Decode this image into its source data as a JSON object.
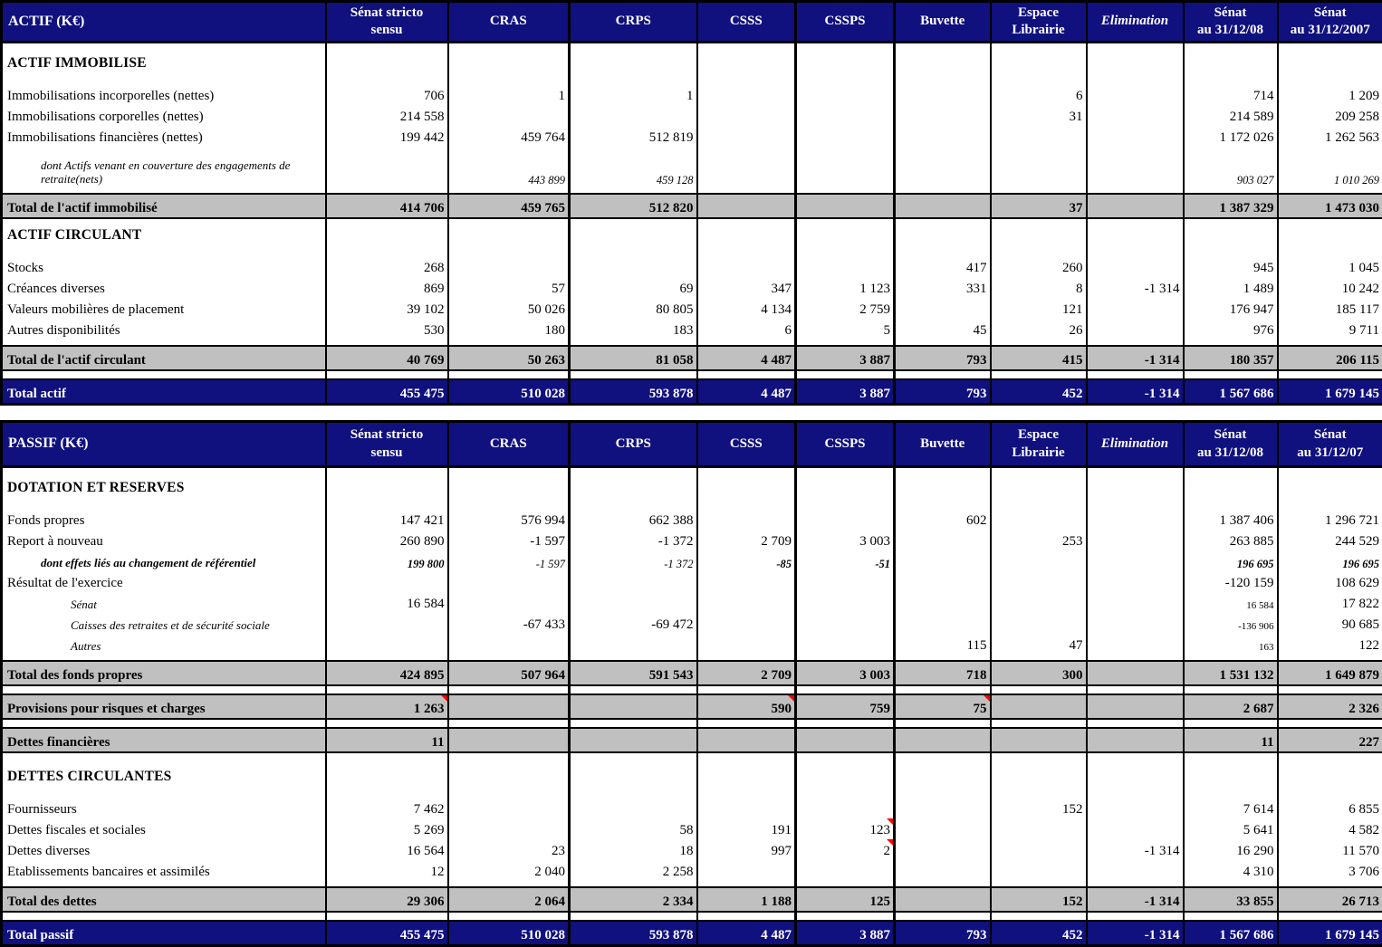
{
  "colors": {
    "header_bg": "#10107E",
    "header_text": "#FFFFFF",
    "total_row_bg": "#C0C0C0",
    "grand_total_bg": "#10107E",
    "grand_total_text": "#FFFFFF",
    "comment_marker": "#FF0000",
    "grid_border": "#000000"
  },
  "tables": [
    {
      "name": "actif",
      "headers": [
        {
          "lines": [
            "ACTIF (K€)"
          ]
        },
        {
          "lines": [
            "Sénat stricto",
            "sensu"
          ]
        },
        {
          "lines": [
            "CRAS"
          ]
        },
        {
          "lines": [
            "CRPS"
          ]
        },
        {
          "lines": [
            "CSSS"
          ]
        },
        {
          "lines": [
            "CSSPS"
          ]
        },
        {
          "lines": [
            "Buvette"
          ]
        },
        {
          "lines": [
            "Espace",
            "Librairie"
          ]
        },
        {
          "lines": [
            "Elimination"
          ],
          "italic": true
        },
        {
          "lines": [
            "Sénat",
            "au 31/12/08"
          ]
        },
        {
          "lines": [
            "Sénat",
            "au 31/12/2007"
          ]
        }
      ],
      "rows": [
        {
          "type": "blank",
          "variant": "md"
        },
        {
          "type": "section",
          "label": "ACTIF IMMOBILISE"
        },
        {
          "type": "blank",
          "variant": "md"
        },
        {
          "type": "data",
          "label": "Immobilisations incorporelles (nettes)",
          "values": [
            "706",
            "1",
            "1",
            "",
            "",
            "",
            "6",
            "",
            "714",
            "1 209"
          ]
        },
        {
          "type": "data",
          "label": "Immobilisations corporelles (nettes)",
          "values": [
            "214 558",
            "",
            "",
            "",
            "",
            "",
            "31",
            "",
            "214 589",
            "209 258"
          ]
        },
        {
          "type": "data",
          "label": "Immobilisations financières (nettes)",
          "values": [
            "199 442",
            "459 764",
            "512 819",
            "",
            "",
            "",
            "",
            "",
            "1 172 026",
            "1 262 563"
          ]
        },
        {
          "type": "data",
          "tall": true,
          "label": "dont Actifs venant en couverture des engagements de retraite(nets)",
          "label_italic": true,
          "label_small": true,
          "indent": 1,
          "values_italic_small": true,
          "values": [
            "",
            "443 899",
            "459 128",
            "",
            "",
            "",
            "",
            "",
            "903 027",
            "1 010 269"
          ]
        },
        {
          "type": "blank",
          "variant": "sm"
        },
        {
          "type": "total",
          "label": "Total de l'actif immobilisé",
          "values": [
            "414 706",
            "459 765",
            "512 820",
            "",
            "",
            "",
            "37",
            "",
            "1 387 329",
            "1 473 030"
          ]
        },
        {
          "type": "blank",
          "variant": "sm"
        },
        {
          "type": "section",
          "label": "ACTIF CIRCULANT"
        },
        {
          "type": "blank",
          "variant": "md"
        },
        {
          "type": "data",
          "label": "Stocks",
          "values": [
            "268",
            "",
            "",
            "",
            "",
            "417",
            "260",
            "",
            "945",
            "1 045"
          ]
        },
        {
          "type": "data",
          "label": "Créances diverses",
          "values": [
            "869",
            "57",
            "69",
            "347",
            "1 123",
            "331",
            "8",
            "-1 314",
            "1 489",
            "10 242"
          ]
        },
        {
          "type": "data",
          "label": "Valeurs mobilières de placement",
          "values": [
            "39 102",
            "50 026",
            "80 805",
            "4 134",
            "2 759",
            "",
            "121",
            "",
            "176 947",
            "185 117"
          ]
        },
        {
          "type": "data",
          "label": "Autres disponibilités",
          "values": [
            "530",
            "180",
            "183",
            "6",
            "5",
            "45",
            "26",
            "",
            "976",
            "9 711"
          ]
        },
        {
          "type": "blank",
          "variant": "sm"
        },
        {
          "type": "total",
          "label": "Total de l'actif circulant",
          "values": [
            "40 769",
            "50 263",
            "81 058",
            "4 487",
            "3 887",
            "793",
            "415",
            "-1 314",
            "180 357",
            "206 115"
          ]
        },
        {
          "type": "spacer"
        },
        {
          "type": "grand",
          "label": "Total actif",
          "values": [
            "455 475",
            "510 028",
            "593 878",
            "4 487",
            "3 887",
            "793",
            "452",
            "-1 314",
            "1 567 686",
            "1 679 145"
          ]
        }
      ]
    },
    {
      "name": "passif",
      "headers": [
        {
          "lines": [
            "PASSIF (K€)"
          ]
        },
        {
          "lines": [
            "Sénat stricto",
            "sensu"
          ]
        },
        {
          "lines": [
            "CRAS"
          ]
        },
        {
          "lines": [
            "CRPS"
          ]
        },
        {
          "lines": [
            "CSSS"
          ]
        },
        {
          "lines": [
            "CSSPS"
          ]
        },
        {
          "lines": [
            "Buvette"
          ]
        },
        {
          "lines": [
            "Espace",
            "Librairie"
          ]
        },
        {
          "lines": [
            "Elimination"
          ],
          "italic": true
        },
        {
          "lines": [
            "Sénat",
            "au 31/12/08"
          ]
        },
        {
          "lines": [
            "Sénat",
            "au 31/12/07"
          ]
        }
      ],
      "rows": [
        {
          "type": "blank",
          "variant": "md"
        },
        {
          "type": "section",
          "label": "DOTATION ET RESERVES"
        },
        {
          "type": "blank",
          "variant": "md"
        },
        {
          "type": "data",
          "label": "Fonds propres",
          "values": [
            "147 421",
            "576 994",
            "662 388",
            "",
            "",
            "602",
            "",
            "",
            "1 387 406",
            "1 296 721"
          ]
        },
        {
          "type": "data",
          "label": "Report à nouveau",
          "values": [
            "260 890",
            "-1 597",
            "-1 372",
            "2 709",
            "3 003",
            "",
            "253",
            "",
            "263 885",
            "244 529"
          ]
        },
        {
          "type": "data",
          "label": "dont effets liés au changement de référentiel",
          "label_bold_italic": true,
          "label_small": true,
          "indent": 1,
          "values_italic_small": true,
          "bold_cols": [
            0,
            3,
            4,
            8,
            9
          ],
          "values": [
            "199 800",
            "-1 597",
            "-1 372",
            "-85",
            "-51",
            "",
            "",
            "",
            "196 695",
            "196 695"
          ]
        },
        {
          "type": "data",
          "label": "Résultat de l'exercice",
          "values": [
            "",
            "",
            "",
            "",
            "",
            "",
            "",
            "",
            "-120 159",
            "108 629"
          ]
        },
        {
          "type": "data",
          "label": "Sénat",
          "label_italic": true,
          "label_small": true,
          "indent": 2,
          "small_cols": [
            8
          ],
          "values": [
            "16 584",
            "",
            "",
            "",
            "",
            "",
            "",
            "",
            "16 584",
            "17 822"
          ]
        },
        {
          "type": "data",
          "label": "Caisses des retraites et de sécurité sociale",
          "label_italic": true,
          "label_small": true,
          "indent": 2,
          "small_cols": [
            8
          ],
          "values": [
            "",
            "-67 433",
            "-69 472",
            "",
            "",
            "",
            "",
            "",
            "-136 906",
            "90 685"
          ]
        },
        {
          "type": "data",
          "label": "Autres",
          "label_italic": true,
          "label_small": true,
          "indent": 2,
          "small_cols": [
            8
          ],
          "values": [
            "",
            "",
            "",
            "",
            "",
            "115",
            "47",
            "",
            "163",
            "122"
          ]
        },
        {
          "type": "blank",
          "variant": "sm"
        },
        {
          "type": "total",
          "label": "Total des fonds propres",
          "values": [
            "424 895",
            "507 964",
            "591 543",
            "2 709",
            "3 003",
            "718",
            "300",
            "",
            "1 531 132",
            "1 649 879"
          ]
        },
        {
          "type": "spacer"
        },
        {
          "type": "total",
          "label": "Provisions pour risques et charges",
          "markers": [
            0,
            3,
            5
          ],
          "values": [
            "1 263",
            "",
            "",
            "590",
            "759",
            "75",
            "",
            "",
            "2 687",
            "2 326"
          ]
        },
        {
          "type": "spacer"
        },
        {
          "type": "total",
          "label": "Dettes financières",
          "values": [
            "11",
            "",
            "",
            "",
            "",
            "",
            "",
            "",
            "11",
            "227"
          ]
        },
        {
          "type": "blank",
          "variant": "lg"
        },
        {
          "type": "section",
          "label": "DETTES CIRCULANTES"
        },
        {
          "type": "blank",
          "variant": "md"
        },
        {
          "type": "data",
          "label": "Fournisseurs",
          "values": [
            "7 462",
            "",
            "",
            "",
            "",
            "",
            "152",
            "",
            "7 614",
            "6 855"
          ]
        },
        {
          "type": "data",
          "label": "Dettes fiscales et sociales",
          "markers": [
            4
          ],
          "values": [
            "5 269",
            "",
            "58",
            "191",
            "123",
            "",
            "",
            "",
            "5 641",
            "4 582"
          ]
        },
        {
          "type": "data",
          "label": "Dettes diverses",
          "markers": [
            4
          ],
          "values": [
            "16 564",
            "23",
            "18",
            "997",
            "2",
            "",
            "",
            "-1 314",
            "16 290",
            "11 570"
          ]
        },
        {
          "type": "data",
          "label": "Etablissements bancaires et assimilés",
          "values": [
            "12",
            "2 040",
            "2 258",
            "",
            "",
            "",
            "",
            "",
            "4 310",
            "3 706"
          ]
        },
        {
          "type": "blank",
          "variant": "sm"
        },
        {
          "type": "total",
          "label": "Total des dettes",
          "values": [
            "29 306",
            "2 064",
            "2 334",
            "1 188",
            "125",
            "",
            "152",
            "-1 314",
            "33 855",
            "26 713"
          ]
        },
        {
          "type": "spacer"
        },
        {
          "type": "grand",
          "label": "Total passif",
          "values": [
            "455 475",
            "510 028",
            "593 878",
            "4 487",
            "3 887",
            "793",
            "452",
            "-1 314",
            "1 567 686",
            "1 679 145"
          ]
        }
      ]
    }
  ]
}
